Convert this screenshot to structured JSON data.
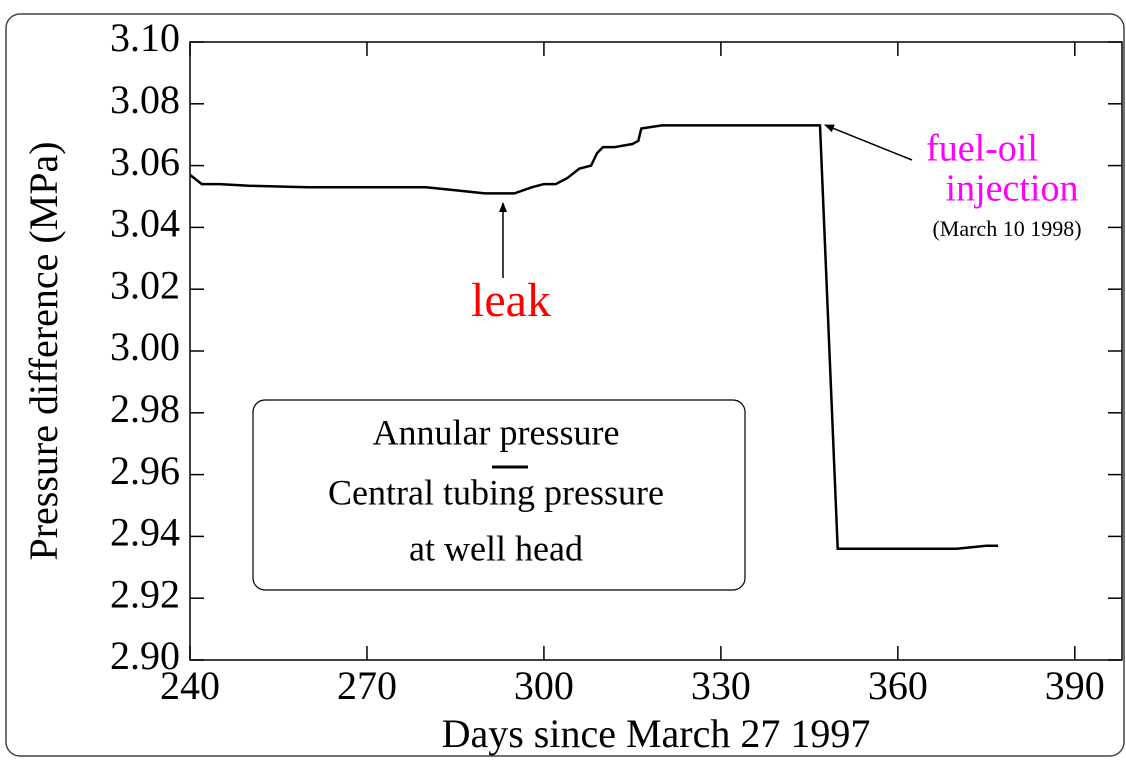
{
  "chart_data": {
    "type": "line",
    "xlabel": "Days since March 27 1997",
    "ylabel": "Pressure difference (MPa)",
    "x": [
      240,
      242,
      245,
      250,
      260,
      270,
      280,
      285,
      290,
      295,
      298,
      300,
      302,
      304,
      306,
      308,
      309,
      310,
      312,
      315,
      316,
      316.5,
      320,
      330,
      340,
      346.8,
      349.8,
      355,
      360,
      365,
      370,
      375,
      377
    ],
    "series": [
      {
        "name": null,
        "color": "#000000",
        "values": [
          3.057,
          3.054,
          3.054,
          3.0535,
          3.053,
          3.053,
          3.053,
          3.052,
          3.051,
          3.051,
          3.053,
          3.054,
          3.054,
          3.056,
          3.059,
          3.06,
          3.064,
          3.066,
          3.066,
          3.067,
          3.068,
          3.072,
          3.073,
          3.073,
          3.073,
          3.073,
          2.936,
          2.936,
          2.936,
          2.936,
          2.936,
          2.937,
          2.937
        ]
      }
    ],
    "xlim": [
      240,
      398
    ],
    "ylim": [
      2.9,
      3.1
    ],
    "xticks": [
      240,
      270,
      300,
      330,
      360,
      390
    ],
    "yticks": [
      {
        "value": 2.9,
        "label": "2.90"
      },
      2.92,
      2.94,
      2.96,
      2.98,
      {
        "value": 3.0,
        "label": "3.00"
      },
      3.02,
      3.04,
      3.06,
      3.08,
      {
        "value": 3.1,
        "label": "3.10"
      }
    ],
    "annotations": {
      "leak": "leak",
      "fuel_oil": "fuel-oil",
      "injection": "injection",
      "date": "(March 10 1998)",
      "box": [
        "Annular pressure",
        "Central tubing pressure",
        "at well head"
      ]
    }
  }
}
